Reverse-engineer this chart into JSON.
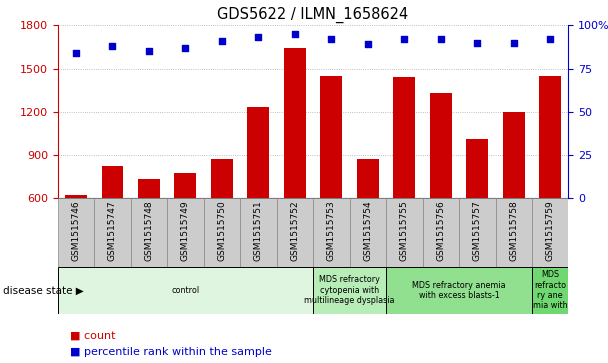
{
  "title": "GDS5622 / ILMN_1658624",
  "samples": [
    "GSM1515746",
    "GSM1515747",
    "GSM1515748",
    "GSM1515749",
    "GSM1515750",
    "GSM1515751",
    "GSM1515752",
    "GSM1515753",
    "GSM1515754",
    "GSM1515755",
    "GSM1515756",
    "GSM1515757",
    "GSM1515758",
    "GSM1515759"
  ],
  "counts": [
    620,
    820,
    730,
    770,
    870,
    1230,
    1640,
    1450,
    870,
    1440,
    1330,
    1010,
    1200,
    1450
  ],
  "percentile_ranks": [
    84,
    88,
    85,
    87,
    91,
    93,
    95,
    92,
    89,
    92,
    92,
    90,
    90,
    92
  ],
  "ylim_left": [
    600,
    1800
  ],
  "ylim_right": [
    0,
    100
  ],
  "yticks_left": [
    600,
    900,
    1200,
    1500,
    1800
  ],
  "yticks_right": [
    0,
    25,
    50,
    75,
    100
  ],
  "pct_ytick_labels": [
    "0",
    "25",
    "50",
    "75",
    "100%"
  ],
  "bar_color": "#CC0000",
  "dot_color": "#0000CC",
  "bar_width": 0.6,
  "disease_groups": [
    {
      "label": "control",
      "start": 0,
      "end": 7,
      "color": "#e0f5e0"
    },
    {
      "label": "MDS refractory\ncytopenia with\nmultilineage dysplasia",
      "start": 7,
      "end": 9,
      "color": "#b8edb8"
    },
    {
      "label": "MDS refractory anemia\nwith excess blasts-1",
      "start": 9,
      "end": 13,
      "color": "#90e090"
    },
    {
      "label": "MDS\nrefracto\nry ane\nmia with",
      "start": 13,
      "end": 14,
      "color": "#70d870"
    }
  ],
  "disease_state_label": "disease state",
  "legend_count_label": "count",
  "legend_pct_label": "percentile rank within the sample",
  "grid_color": "#aaaaaa",
  "grid_linestyle": "dotted"
}
